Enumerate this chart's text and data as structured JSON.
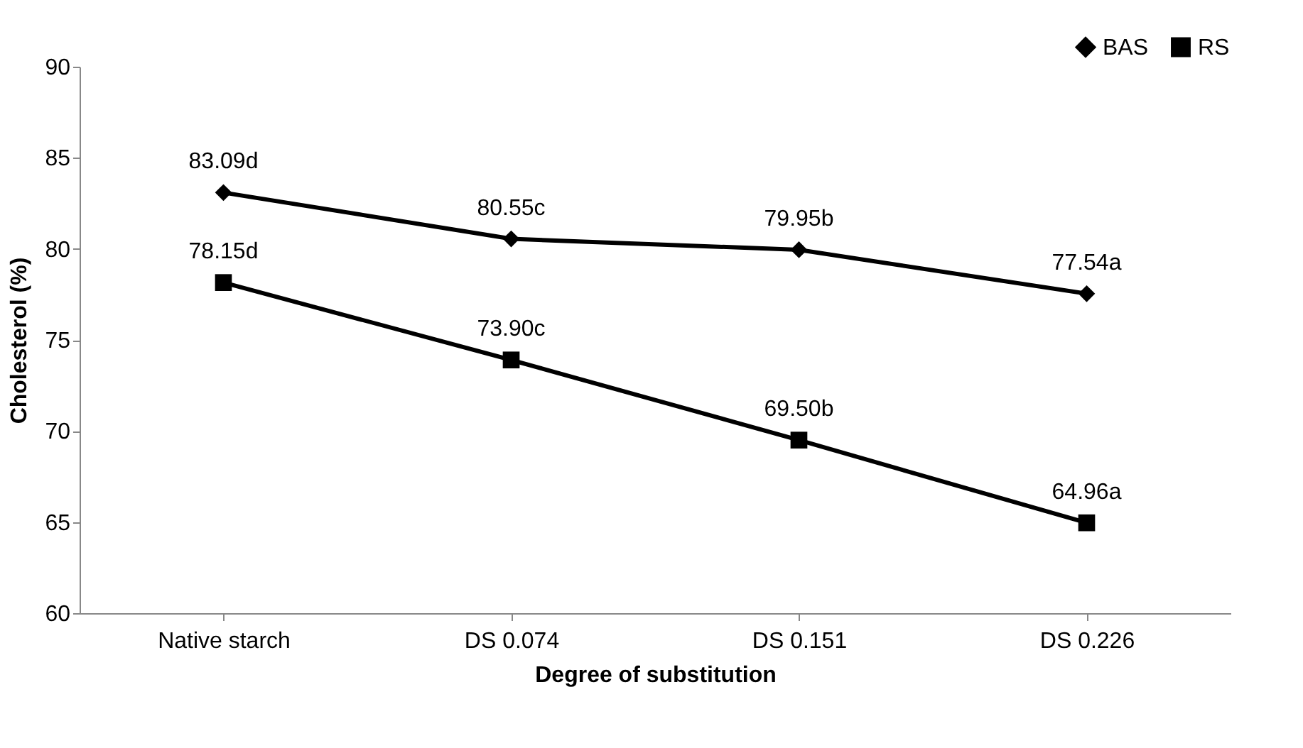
{
  "chart_data": {
    "type": "line",
    "xlabel": "Degree of substitution",
    "ylabel": "Cholesterol (%)",
    "categories": [
      "Native starch",
      "DS 0.074",
      "DS 0.151",
      "DS 0.226"
    ],
    "series": [
      {
        "name": "BAS",
        "color": "#000000",
        "marker": "diamond",
        "values": [
          83.09,
          80.55,
          79.95,
          77.54
        ],
        "value_labels": [
          "83.09d",
          "80.55c",
          "79.95b",
          "77.54a"
        ]
      },
      {
        "name": "RS",
        "color": "#000000",
        "marker": "square",
        "values": [
          78.15,
          73.9,
          69.5,
          64.96
        ],
        "value_labels": [
          "78.15d",
          "73.90c",
          "69.50b",
          "64.96a"
        ]
      }
    ],
    "ylim": [
      60,
      90
    ],
    "yticks": [
      60,
      65,
      70,
      75,
      80,
      85,
      90
    ],
    "grid": false,
    "legend": "top right",
    "line_style": "solid"
  }
}
